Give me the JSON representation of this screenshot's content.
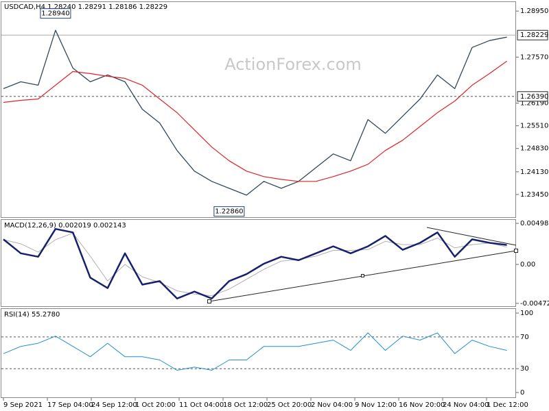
{
  "chart_data": [
    {
      "type": "line",
      "title": "USDCAD,H4 1.28240 1.28291 1.28186 1.28229",
      "watermark": "ActionForex.com",
      "x": [
        0,
        1,
        2,
        3,
        4,
        5,
        6,
        7,
        8,
        9,
        10,
        11,
        12,
        13,
        14,
        15,
        16,
        17,
        18,
        19,
        20,
        21,
        22,
        23,
        24,
        25,
        26,
        27,
        28,
        29
      ],
      "xlim": [
        -0.12,
        29.53
      ],
      "ylim": [
        1.2275,
        1.2922
      ],
      "yticks": [
        {
          "value": 1.2895,
          "label": "1.28950"
        },
        {
          "value": 1.2757,
          "label": "1.27570"
        },
        {
          "value": 1.2619,
          "label": "1.26190"
        },
        {
          "value": 1.2551,
          "label": "1.25510"
        },
        {
          "value": 1.2483,
          "label": "1.24830"
        },
        {
          "value": 1.2413,
          "label": "1.24130"
        },
        {
          "value": 1.2345,
          "label": "1.23450"
        }
      ],
      "hlines": [
        {
          "value": 1.28229,
          "label": "1.28229",
          "dashed": false
        },
        {
          "value": 1.2639,
          "label": "1.26390",
          "dashed": true
        }
      ],
      "annotations": [
        {
          "x": 3,
          "value": 1.2894,
          "label": "1.28940"
        },
        {
          "x": 13,
          "value": 1.2286,
          "label": "1.22860"
        }
      ],
      "series": [
        {
          "color": "#2f4858",
          "width": 1.3,
          "values": [
            1.26623,
            1.26829,
            1.26726,
            1.28374,
            1.27241,
            1.26829,
            1.27035,
            1.26829,
            1.26005,
            1.25593,
            1.24769,
            1.24151,
            1.23842,
            1.23636,
            1.2343,
            1.23842,
            1.23636,
            1.23842,
            1.24254,
            1.24666,
            1.2446,
            1.25696,
            1.25284,
            1.25799,
            1.26314,
            1.27035,
            1.26623,
            1.27859,
            1.28065,
            1.28168
          ]
        },
        {
          "color": "#e02424",
          "width": 1.2,
          "values": [
            1.26211,
            1.26272,
            1.26314,
            1.26726,
            1.27138,
            1.27076,
            1.26993,
            1.26932,
            1.26726,
            1.26314,
            1.25902,
            1.25387,
            1.24872,
            1.2446,
            1.24151,
            1.23986,
            1.23903,
            1.23842,
            1.23842,
            1.23986,
            1.24151,
            1.24357,
            1.24769,
            1.25078,
            1.2549,
            1.25902,
            1.26252,
            1.26726,
            1.27076,
            1.27447
          ]
        }
      ]
    },
    {
      "type": "line",
      "title": "MACD(12,26,9) 0.002019 0.002143",
      "x": [
        0,
        1,
        2,
        3,
        4,
        5,
        6,
        7,
        8,
        9,
        10,
        11,
        12,
        13,
        14,
        15,
        16,
        17,
        18,
        19,
        20,
        21,
        22,
        23,
        24,
        25,
        26,
        27,
        28,
        29
      ],
      "xlim": [
        -0.12,
        29.53
      ],
      "ylim": [
        -0.00515,
        0.0054
      ],
      "yticks": [
        {
          "value": 0.00498,
          "label": "0.00498"
        },
        {
          "value": 0,
          "label": "0.00"
        },
        {
          "value": -0.004723,
          "label": "-0.004723"
        }
      ],
      "series": [
        {
          "color": "#b0b0b0",
          "width": 1,
          "values": [
            0.003,
            0.0025,
            0.0015,
            0.003,
            0.0038,
            0.001,
            -0.002,
            0,
            -0.0015,
            -0.0022,
            -0.0032,
            -0.0036,
            -0.0038,
            -0.003,
            -0.0018,
            -0.0006,
            0.0004,
            0.0006,
            0.001,
            0.0017,
            0.0017,
            0.0018,
            0.0028,
            0.0024,
            0.0024,
            0.0032,
            0.002,
            0.0024,
            0.0026,
            0.0021
          ]
        },
        {
          "color": "#16206e",
          "width": 2.5,
          "values": [
            0.00304,
            0.00135,
            0.00093,
            0.0043,
            0.00388,
            -0.0016,
            -0.00287,
            0.00135,
            -0.00245,
            -0.00203,
            -0.00414,
            -0.00329,
            -0.00414,
            -0.00203,
            -0.00118,
            8e-05,
            0.00093,
            0.00051,
            0.00135,
            0.00219,
            0.00135,
            0.00219,
            0.00346,
            0.00177,
            0.00262,
            0.00388,
            0.00093,
            0.00304,
            0.00262,
            0.00236
          ]
        }
      ]
    },
    {
      "type": "line",
      "title": "RSI(14) 55.2780",
      "x": [
        0,
        1,
        2,
        3,
        4,
        5,
        6,
        7,
        8,
        9,
        10,
        11,
        12,
        13,
        14,
        15,
        16,
        17,
        18,
        19,
        20,
        21,
        22,
        23,
        24,
        25,
        26,
        27,
        28,
        29
      ],
      "xlim": [
        -0.12,
        29.53
      ],
      "ylim": [
        -6.9,
        105.2
      ],
      "yticks": [
        100,
        70,
        30,
        0
      ],
      "hlines": [
        {
          "value": 70,
          "dashed": true
        },
        {
          "value": 30,
          "dashed": true
        }
      ],
      "xticks": [
        {
          "value": 0,
          "label": "9 Sep 2021"
        },
        {
          "value": 2.53,
          "label": "17 Sep 04:00"
        },
        {
          "value": 5.06,
          "label": "24 Sep 12:00"
        },
        {
          "value": 7.59,
          "label": "1 Oct 20:00"
        },
        {
          "value": 10.12,
          "label": "11 Oct 04:00"
        },
        {
          "value": 12.65,
          "label": "18 Oct 12:00"
        },
        {
          "value": 15.18,
          "label": "25 Oct 20:00"
        },
        {
          "value": 17.71,
          "label": "2 Nov 04:00"
        },
        {
          "value": 20.24,
          "label": "9 Nov 12:00"
        },
        {
          "value": 22.77,
          "label": "16 Nov 20:00"
        },
        {
          "value": 25.3,
          "label": "24 Nov 04:00"
        },
        {
          "value": 27.83,
          "label": "1 Dec 12:00"
        }
      ],
      "series": [
        {
          "color": "#1f8fd0",
          "width": 1,
          "values": [
            49,
            58,
            62,
            71,
            58,
            45,
            62,
            45,
            45,
            41,
            28,
            32,
            28,
            41,
            41,
            58,
            58,
            58,
            62,
            66,
            53,
            75,
            53,
            71,
            66,
            75,
            49,
            66,
            58,
            53
          ]
        }
      ]
    }
  ]
}
